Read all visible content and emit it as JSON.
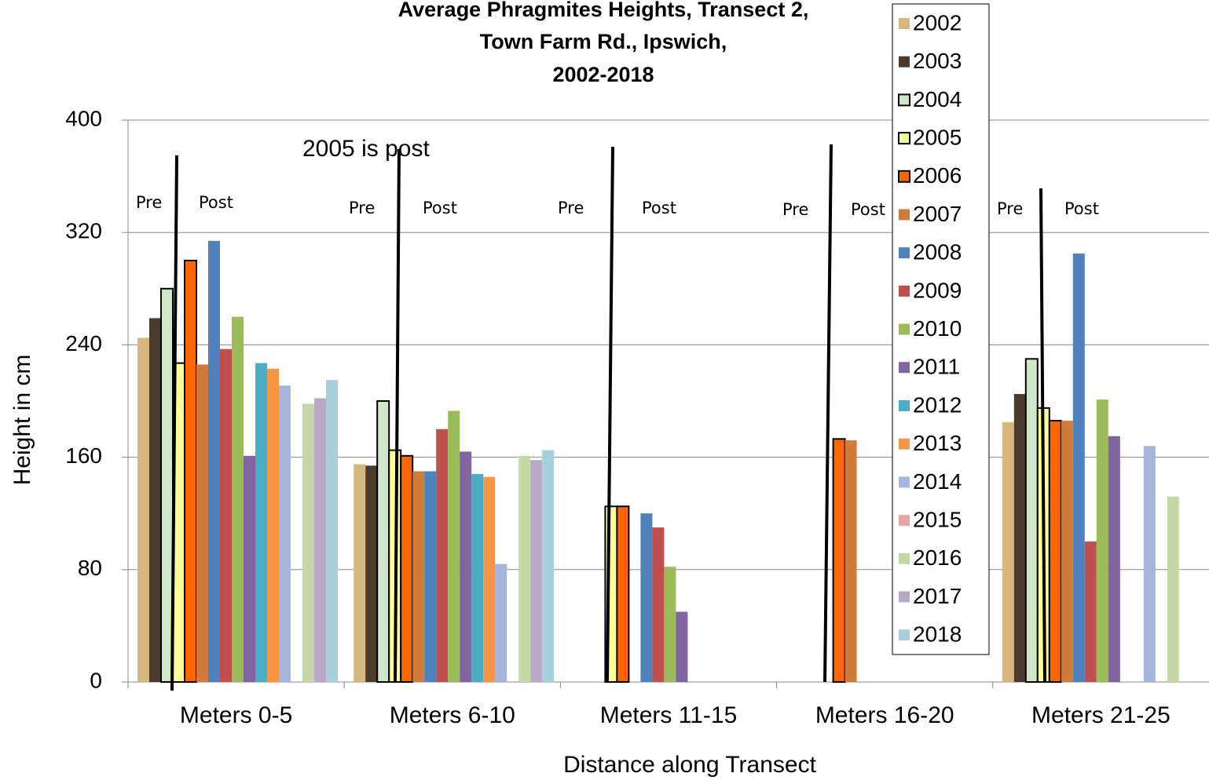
{
  "chart_data": {
    "type": "bar",
    "title": [
      "Average Phragmites Heights, Transect 2,",
      "Town Farm Rd., Ipswich,",
      "2002-2018"
    ],
    "x_label": "Distance along Transect",
    "y_label": "Height in cm",
    "categories": [
      "Meters  0-5",
      "Meters  6-10",
      "Meters  11-15",
      "Meters  16-20",
      "Meters  21-25"
    ],
    "ylim": [
      0,
      400
    ],
    "yticks": [
      0,
      80,
      160,
      240,
      320,
      400
    ],
    "grid": true,
    "annotations": [
      "2005 is post",
      "Pre",
      "Post",
      "Pre",
      "Post",
      "Pre",
      "Post",
      "Pre",
      "Post",
      "Pre",
      "Post"
    ],
    "series": [
      {
        "name": "2002",
        "color": "#d6b77e",
        "values": [
          245,
          155,
          null,
          null,
          185
        ]
      },
      {
        "name": "2003",
        "color": "#4a3b2c",
        "values": [
          259,
          154,
          null,
          null,
          205
        ]
      },
      {
        "name": "2004",
        "color": "#cfe6c8",
        "values": [
          280,
          200,
          null,
          null,
          230
        ]
      },
      {
        "name": "2005",
        "color": "#ffff99",
        "values": [
          227,
          165,
          125,
          null,
          195
        ]
      },
      {
        "name": "2006",
        "color": "#ff6600",
        "values": [
          300,
          161,
          125,
          173,
          186
        ]
      },
      {
        "name": "2007",
        "color": "#d07b38",
        "values": [
          226,
          150,
          null,
          172,
          186
        ]
      },
      {
        "name": "2008",
        "color": "#4f81bd",
        "values": [
          314,
          150,
          120,
          null,
          305
        ]
      },
      {
        "name": "2009",
        "color": "#c0504d",
        "values": [
          237,
          180,
          110,
          null,
          100
        ]
      },
      {
        "name": "2010",
        "color": "#9bbb59",
        "values": [
          260,
          193,
          82,
          null,
          201
        ]
      },
      {
        "name": "2011",
        "color": "#8064a2",
        "values": [
          161,
          164,
          50,
          null,
          175
        ]
      },
      {
        "name": "2012",
        "color": "#4bacc6",
        "values": [
          227,
          148,
          null,
          null,
          null
        ]
      },
      {
        "name": "2013",
        "color": "#f79646",
        "values": [
          223,
          146,
          null,
          null,
          null
        ]
      },
      {
        "name": "2014",
        "color": "#a5b5dc",
        "values": [
          211,
          84,
          null,
          null,
          168
        ]
      },
      {
        "name": "2015",
        "color": "#e6a5a5",
        "values": [
          null,
          null,
          null,
          null,
          null
        ]
      },
      {
        "name": "2016",
        "color": "#c4d7a4",
        "values": [
          198,
          161,
          null,
          null,
          132
        ]
      },
      {
        "name": "2017",
        "color": "#b8a9c9",
        "values": [
          202,
          158,
          null,
          null,
          null
        ]
      },
      {
        "name": "2018",
        "color": "#a7cfdc",
        "values": [
          215,
          165,
          null,
          null,
          null
        ]
      }
    ]
  }
}
